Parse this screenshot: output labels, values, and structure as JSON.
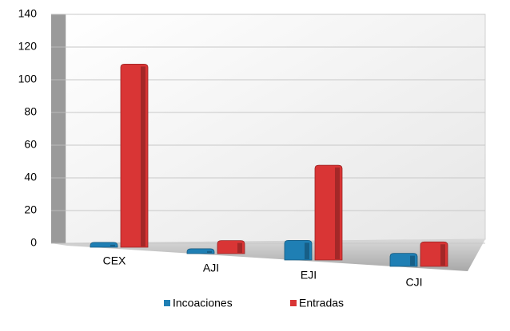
{
  "chart_data": {
    "type": "bar",
    "categories": [
      "CEX",
      "AJI",
      "EJI",
      "CJI"
    ],
    "series": [
      {
        "name": "Incoaciones",
        "color": "#1f7fb4",
        "values": [
          3,
          3,
          12,
          8
        ]
      },
      {
        "name": "Entradas",
        "color": "#d93535",
        "values": [
          112,
          8,
          58,
          15
        ]
      }
    ],
    "ylim": [
      0,
      140
    ],
    "yticks": [
      0,
      20,
      40,
      60,
      80,
      100,
      120,
      140
    ],
    "grid": true,
    "legend": "bottom"
  }
}
